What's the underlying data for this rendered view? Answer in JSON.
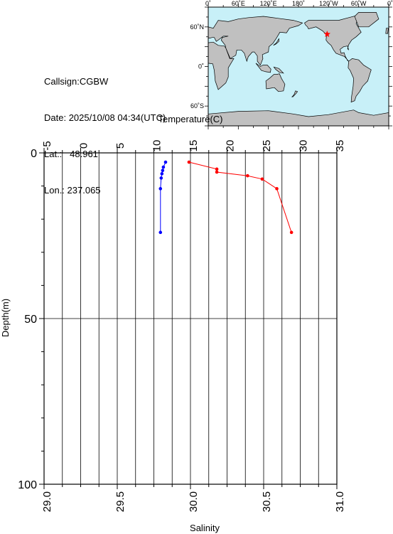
{
  "station": {
    "callsign_label": "Callsign:",
    "callsign": "CGBW",
    "date_label": "Date:",
    "date": "2025/10/08 04:34(UTC)",
    "lat_label": "Lat.:",
    "lat": "48.961",
    "lon_label": "Lon.:",
    "lon": "237.065"
  },
  "map": {
    "top_ticks": [
      "0˚",
      "60˚E",
      "120˚E",
      "180˚",
      "120˚W",
      "60˚W",
      "0˚"
    ],
    "left_ticks": [
      "60˚N",
      "0˚",
      "60˚S"
    ],
    "land_color": "#c0c0c0",
    "ocean_color": "#c8f0f8",
    "marker": {
      "symbol": "star",
      "lon": 237.065,
      "lat": 48.961,
      "color": "#ff0000"
    }
  },
  "chart_data": {
    "type": "line",
    "title": "",
    "top_axis": {
      "label": "Temperature(C)",
      "range": [
        -5,
        35
      ],
      "ticks": [
        "-5",
        "0",
        "5",
        "10",
        "15",
        "20",
        "25",
        "30",
        "35"
      ]
    },
    "bottom_axis": {
      "label": "Salinity",
      "range": [
        29.0,
        31.0
      ],
      "ticks": [
        "29.0",
        "29.5",
        "30.0",
        "30.5",
        "31.0"
      ]
    },
    "left_axis": {
      "label": "Depth(m)",
      "range": [
        0,
        100
      ],
      "inverted": true,
      "ticks": [
        "0",
        "50",
        "100"
      ]
    },
    "grid": true,
    "series": [
      {
        "axis": "temperature",
        "color": "#0000ff",
        "points": [
          {
            "x": 11.6,
            "depth": 2.8
          },
          {
            "x": 11.3,
            "depth": 4.3
          },
          {
            "x": 11.2,
            "depth": 5.3
          },
          {
            "x": 11.1,
            "depth": 6.3
          },
          {
            "x": 11.0,
            "depth": 7.6
          },
          {
            "x": 10.9,
            "depth": 10.8
          },
          {
            "x": 10.9,
            "depth": 24.0
          }
        ]
      },
      {
        "axis": "salinity",
        "color": "#ff0000",
        "points": [
          {
            "x": 29.99,
            "depth": 2.8
          },
          {
            "x": 30.18,
            "depth": 4.9
          },
          {
            "x": 30.18,
            "depth": 5.8
          },
          {
            "x": 30.39,
            "depth": 6.9
          },
          {
            "x": 30.49,
            "depth": 7.9
          },
          {
            "x": 30.59,
            "depth": 10.8
          },
          {
            "x": 30.69,
            "depth": 24.0
          }
        ]
      }
    ]
  }
}
